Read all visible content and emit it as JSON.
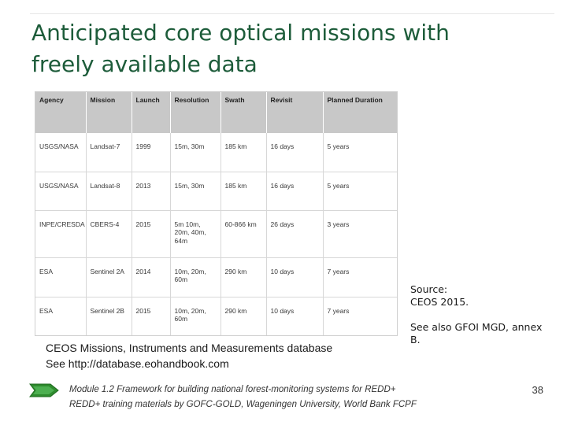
{
  "slide": {
    "title_line1": "Anticipated core optical missions with",
    "title_line2": "freely available data"
  },
  "table": {
    "headers": [
      "Agency",
      "Mission",
      "Launch",
      "Resolution",
      "Swath",
      "Revisit",
      "Planned Duration"
    ],
    "rows": [
      [
        "USGS/NASA",
        "Landsat-7",
        "1999",
        "15m, 30m",
        "185 km",
        "16 days",
        "5 years"
      ],
      [
        "USGS/NASA",
        "Landsat-8",
        "2013",
        "15m, 30m",
        "185 km",
        "16 days",
        "5 years"
      ],
      [
        "INPE/CRESDA",
        "CBERS-4",
        "2015",
        "5m 10m, 20m, 40m, 64m",
        "60-866 km",
        "26 days",
        "3 years"
      ],
      [
        "ESA",
        "Sentinel 2A",
        "2014",
        "10m, 20m, 60m",
        "290 km",
        "10 days",
        "7 years"
      ],
      [
        "ESA",
        "Sentinel 2B",
        "2015",
        "10m, 20m, 60m",
        "290 km",
        "10 days",
        "7 years"
      ]
    ]
  },
  "notes": {
    "db_line1": "CEOS Missions, Instruments and Measurements database",
    "db_line2": "See http://database.eohandbook.com",
    "source_line1": "Source:",
    "source_line2": "CEOS 2015.",
    "see_also": "See also GFOI MGD, annex B."
  },
  "footer": {
    "line1": "Module 1.2 Framework for building national forest-monitoring systems for REDD+",
    "line2": "REDD+ training materials by GOFC-GOLD, Wageningen University, World Bank FCPF",
    "page_number": "38",
    "arrow_icon": "green-arrow-icon",
    "accent_color": "#2e8b2e"
  },
  "colors": {
    "title": "#1d5c3a",
    "table_header_bg": "#c8c8c8"
  }
}
